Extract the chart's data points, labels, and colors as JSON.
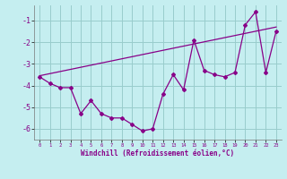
{
  "xlabel": "Windchill (Refroidissement éolien,°C)",
  "bg_color": "#c5eef0",
  "line_color": "#880088",
  "grid_color": "#99cccc",
  "x_data": [
    0,
    1,
    2,
    3,
    4,
    5,
    6,
    7,
    8,
    9,
    10,
    11,
    12,
    13,
    14,
    15,
    16,
    17,
    18,
    19,
    20,
    21,
    22,
    23
  ],
  "y_data": [
    -3.6,
    -3.9,
    -4.1,
    -4.1,
    -5.3,
    -4.7,
    -5.3,
    -5.5,
    -5.5,
    -5.8,
    -6.1,
    -6.0,
    -4.4,
    -3.5,
    -4.2,
    -1.9,
    -3.3,
    -3.5,
    -3.6,
    -3.4,
    -1.2,
    -0.6,
    -3.4,
    -1.5
  ],
  "y_trend_x": [
    0,
    23
  ],
  "y_trend_y": [
    -3.55,
    -1.3
  ],
  "ylim": [
    -6.5,
    -0.3
  ],
  "xlim": [
    -0.5,
    23.5
  ],
  "yticks": [
    -6,
    -5,
    -4,
    -3,
    -2,
    -1
  ],
  "xticks": [
    0,
    1,
    2,
    3,
    4,
    5,
    6,
    7,
    8,
    9,
    10,
    11,
    12,
    13,
    14,
    15,
    16,
    17,
    18,
    19,
    20,
    21,
    22,
    23
  ]
}
